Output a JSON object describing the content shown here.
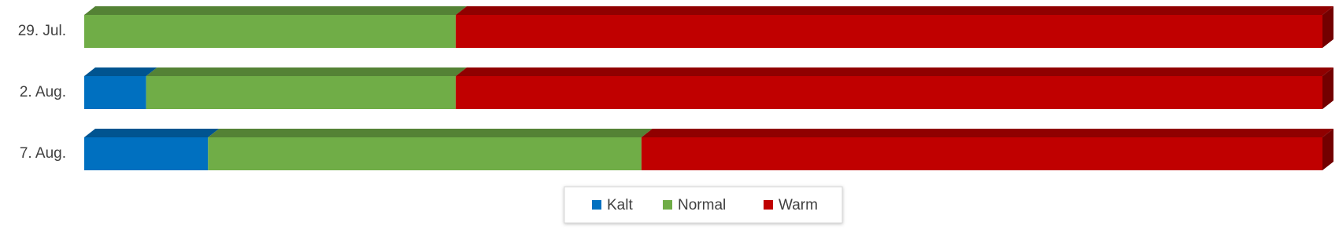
{
  "chart_data": {
    "type": "stacked-bar-horizontal-100",
    "categories": [
      "29. Jul.",
      "2. Aug.",
      "7. Aug."
    ],
    "series": [
      {
        "name": "Kalt",
        "color": "#0070c0",
        "values": [
          0,
          5,
          10
        ]
      },
      {
        "name": "Normal",
        "color": "#70ad47",
        "values": [
          30,
          25,
          35
        ]
      },
      {
        "name": "Warm",
        "color": "#c00000",
        "values": [
          70,
          70,
          55
        ]
      }
    ],
    "legend": "bottom"
  }
}
